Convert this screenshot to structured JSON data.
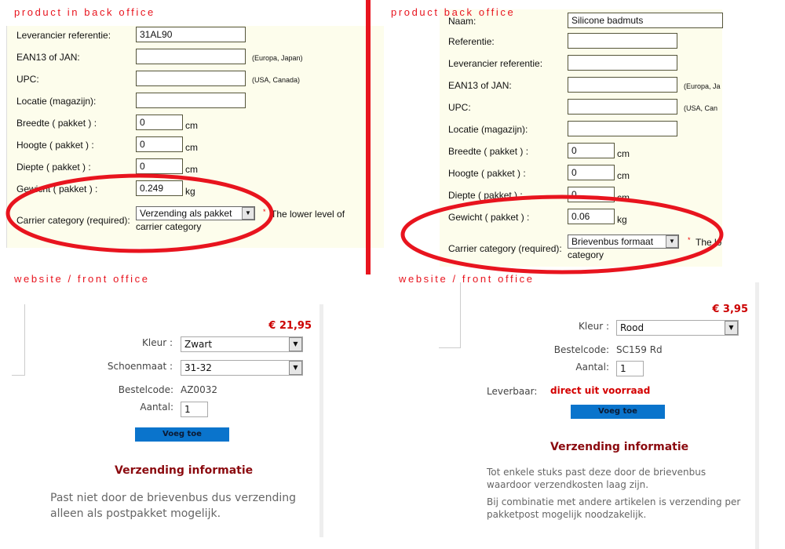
{
  "left_back": {
    "title": "product in back office",
    "rows": [
      {
        "label": "Leverancier referentie:",
        "value": "31AL90"
      },
      {
        "label": "EAN13 of JAN:",
        "value": "",
        "note": "(Europa, Japan)"
      },
      {
        "label": "UPC:",
        "value": "",
        "note": "(USA, Canada)"
      },
      {
        "label": "Locatie (magazijn):",
        "value": ""
      },
      {
        "label": "Breedte ( pakket ) :",
        "value": "0",
        "unit": "cm"
      },
      {
        "label": "Hoogte ( pakket ) :",
        "value": "0",
        "unit": "cm"
      },
      {
        "label": "Diepte ( pakket ) :",
        "value": "0",
        "unit": "cm"
      },
      {
        "label": "Gewicht ( pakket ) :",
        "value": "0.249",
        "unit": "kg"
      }
    ],
    "carrier": {
      "label": "Carrier category (required):",
      "value": "Verzending als pakket",
      "required": "*",
      "hint1": "The lower level of",
      "hint2": "carrier category"
    }
  },
  "right_back": {
    "title": "product back office",
    "rows": [
      {
        "label": "Naam:",
        "value": "Silicone badmuts"
      },
      {
        "label": "Referentie:",
        "value": ""
      },
      {
        "label": "Leverancier referentie:",
        "value": ""
      },
      {
        "label": "EAN13 of JAN:",
        "value": "",
        "note": "(Europa, Ja"
      },
      {
        "label": "UPC:",
        "value": "",
        "note": "(USA, Can"
      },
      {
        "label": "Locatie (magazijn):",
        "value": ""
      },
      {
        "label": "Breedte ( pakket ) :",
        "value": "0",
        "unit": "cm"
      },
      {
        "label": "Hoogte ( pakket ) :",
        "value": "0",
        "unit": "cm"
      },
      {
        "label": "Diepte ( pakket ) :",
        "value": "0",
        "unit": "cm"
      },
      {
        "label": "Gewicht ( pakket ) :",
        "value": "0.06",
        "unit": "kg"
      }
    ],
    "carrier": {
      "label": "Carrier category (required):",
      "value": "Brievenbus formaat",
      "required": "*",
      "hint1": "The lo",
      "hint2": "category"
    }
  },
  "left_front": {
    "title": "website / front office",
    "price": "€ 21,95",
    "kleur_label": "Kleur :",
    "kleur": "Zwart",
    "maat_label": "Schoenmaat :",
    "maat": "31-32",
    "code_label": "Bestelcode:",
    "code": "AZ0032",
    "qty_label": "Aantal:",
    "qty": "1",
    "button": "Voeg toe",
    "heading": "Verzending informatie",
    "text": "Past niet door de brievenbus dus verzending alleen als postpakket mogelijk."
  },
  "right_front": {
    "title": "website / front office",
    "price": "€ 3,95",
    "kleur_label": "Kleur :",
    "kleur": "Rood",
    "code_label": "Bestelcode:",
    "code": "SC159 Rd",
    "qty_label": "Aantal:",
    "qty": "1",
    "stock_label": "Leverbaar:",
    "stock": "direct uit voorraad",
    "button": "Voeg toe",
    "heading": "Verzending informatie",
    "text1": "Tot enkele stuks past deze door de brievenbus waardoor verzendkosten laag zijn.",
    "text2": "Bij combinatie met andere artikelen is verzending per pakketpost mogelijk noodzakelijk."
  },
  "colors": {
    "annotation": "#e8141e",
    "button": "#0a74cc",
    "price": "#cc0000"
  }
}
